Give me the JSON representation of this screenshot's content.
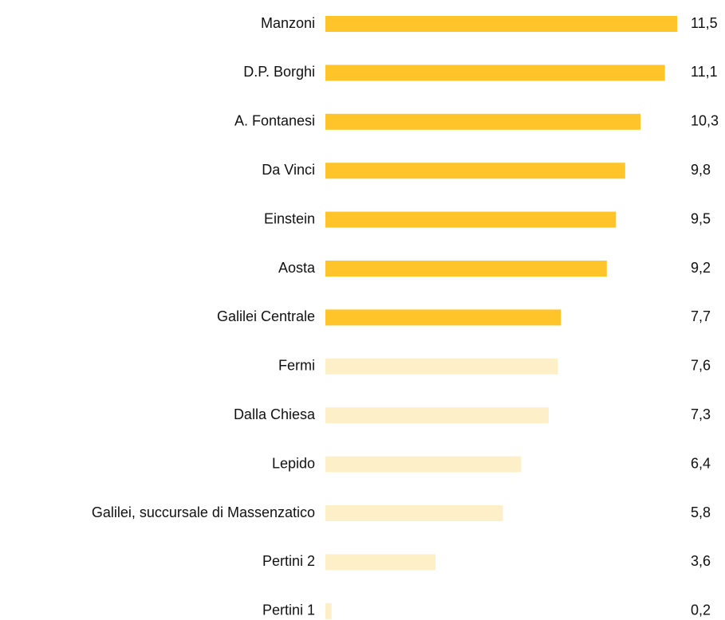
{
  "chart_data": {
    "type": "bar",
    "orientation": "horizontal",
    "categories": [
      "Manzoni",
      "D.P. Borghi",
      "A. Fontanesi",
      "Da Vinci",
      "Einstein",
      "Aosta",
      "Galilei Centrale",
      "Fermi",
      "Dalla Chiesa",
      "Lepido",
      "Galilei, succursale di Massenzatico",
      "Pertini 2",
      "Pertini 1"
    ],
    "values": [
      11.5,
      11.1,
      10.3,
      9.8,
      9.5,
      9.2,
      7.7,
      7.6,
      7.3,
      6.4,
      5.8,
      3.6,
      0.2
    ],
    "value_labels": [
      "11,5",
      "11,1",
      "10,3",
      "9,8",
      "9,5",
      "9,2",
      "7,7",
      "7,6",
      "7,3",
      "6,4",
      "5,8",
      "3,6",
      "0,2"
    ],
    "colors": [
      "#fec42a",
      "#fec42a",
      "#fec42a",
      "#fec42a",
      "#fec42a",
      "#fec42a",
      "#fec42a",
      "#fdefc8",
      "#fdefc8",
      "#fdefc8",
      "#fdefc8",
      "#fdefc8",
      "#fdefc8"
    ]
  }
}
